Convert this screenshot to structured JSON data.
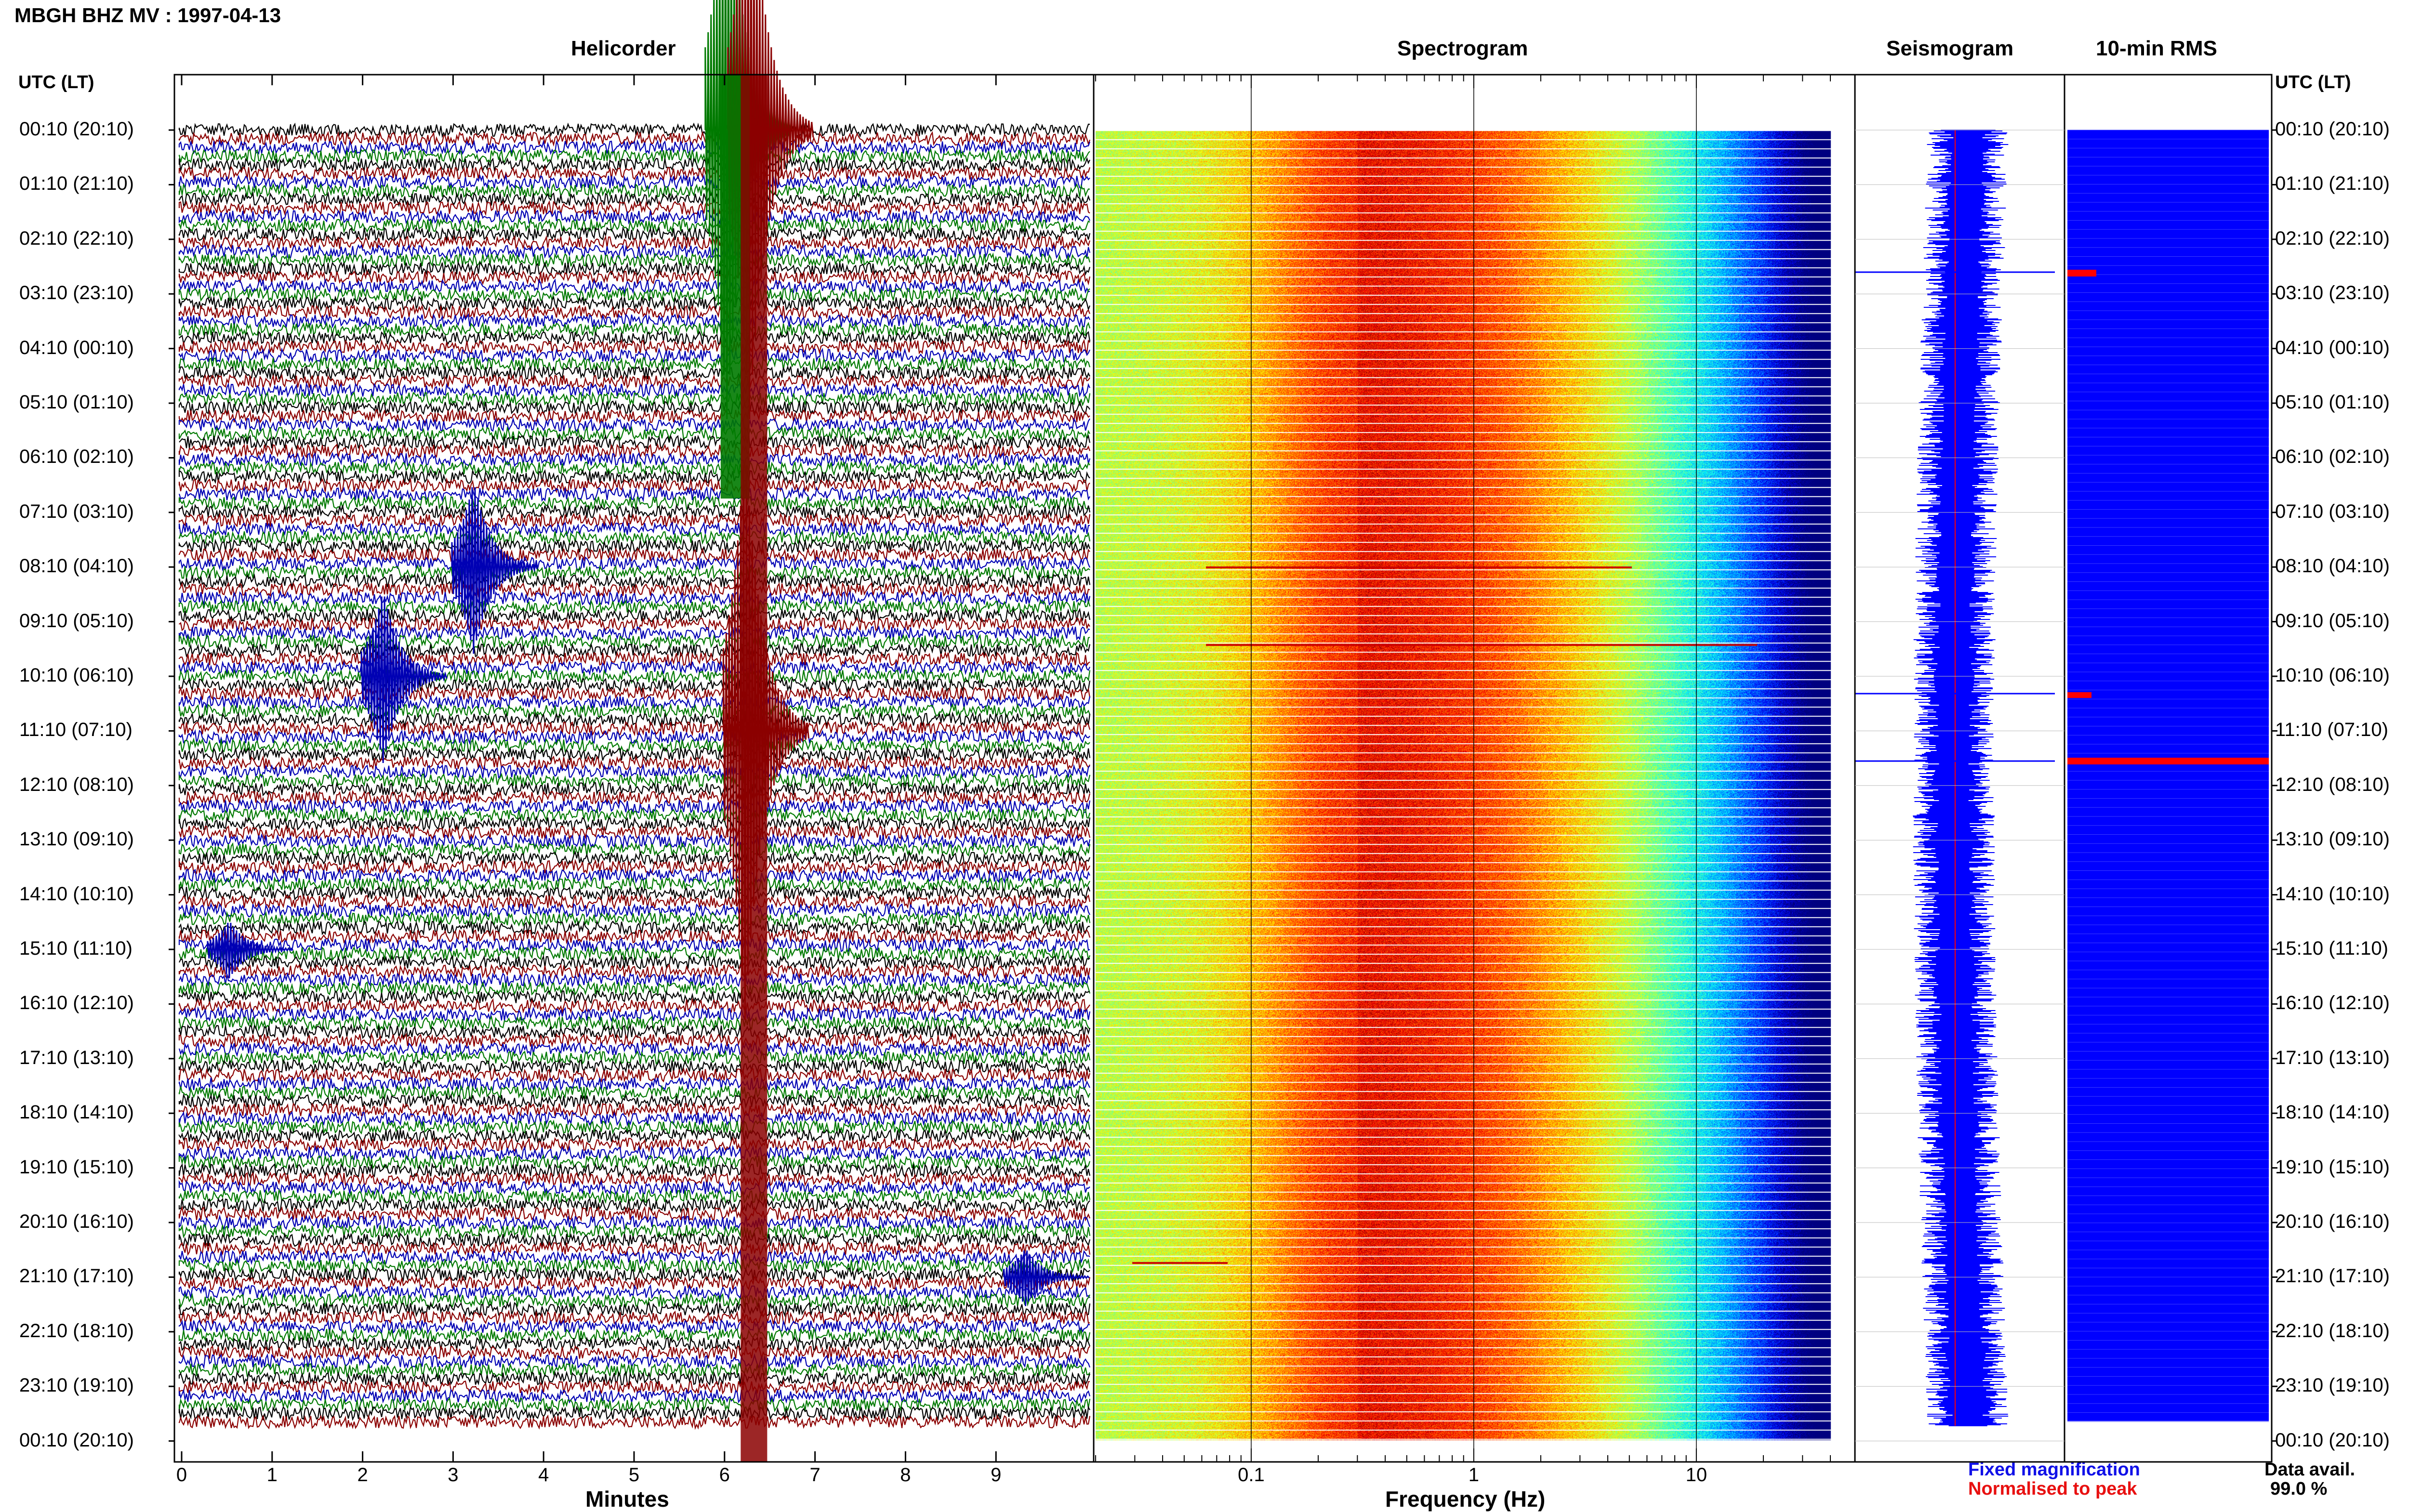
{
  "header": {
    "station_title": "MBGH BHZ MV : 1997-04-13",
    "utc_lt_label_left": "UTC (LT)",
    "utc_lt_label_right": "UTC (LT)"
  },
  "panels": {
    "helicorder_title": "Helicorder",
    "spectrogram_title": "Spectrogram",
    "seismogram_title": "Seismogram",
    "rms_title": "10-min RMS"
  },
  "axes": {
    "minutes_label": "Minutes",
    "frequency_label": "Frequency (Hz)",
    "minute_ticks": [
      "0",
      "1",
      "2",
      "3",
      "4",
      "5",
      "6",
      "7",
      "8",
      "9"
    ],
    "frequency_ticks": [
      "0.1",
      "1",
      "10"
    ]
  },
  "time_labels": [
    "00:10 (20:10)",
    "01:10 (21:10)",
    "02:10 (22:10)",
    "03:10 (23:10)",
    "04:10 (00:10)",
    "05:10 (01:10)",
    "06:10 (02:10)",
    "07:10 (03:10)",
    "08:10 (04:10)",
    "09:10 (05:10)",
    "10:10 (06:10)",
    "11:10 (07:10)",
    "12:10 (08:10)",
    "13:10 (09:10)",
    "14:10 (10:10)",
    "15:10 (11:10)",
    "16:10 (12:10)",
    "17:10 (13:10)",
    "18:10 (14:10)",
    "19:10 (15:10)",
    "20:10 (16:10)",
    "21:10 (17:10)",
    "22:10 (18:10)",
    "23:10 (19:10)",
    "00:10 (20:10)"
  ],
  "legend": {
    "fixed_magnification": "Fixed magnification",
    "normalised_to_peak": "Normalised to peak",
    "fixed_color": "#1010e8",
    "normalised_color": "#e81010"
  },
  "data_availability": {
    "label": "Data avail.",
    "value": "99.0 %"
  },
  "colors": {
    "trace_black": "#000000",
    "trace_red": "#8b0000",
    "trace_blue": "#0000b4",
    "trace_green": "#007a00",
    "seismogram_blue": "#0000ff",
    "rms_blue": "#0000ff",
    "rms_red": "#ff0000"
  },
  "chart_data": [
    {
      "type": "line",
      "title": "Helicorder",
      "xlabel": "Minutes",
      "ylabel": "UTC (LT)",
      "xlim": [
        0,
        10
      ],
      "rows_per_hour": 6,
      "trace_color_cycle": [
        "black",
        "red",
        "blue",
        "green"
      ],
      "events": [
        {
          "hour_row": 0,
          "minute": 6.0,
          "amplitude": "saturated",
          "color": "green"
        },
        {
          "hour_row": 0,
          "minute": 6.25,
          "amplitude": "saturated",
          "color": "red"
        },
        {
          "hour_row": 8,
          "minute": 3.2,
          "amplitude": "large",
          "color": "blue"
        },
        {
          "hour_row": 10,
          "minute": 2.2,
          "amplitude": "large",
          "color": "blue"
        },
        {
          "hour_row": 11,
          "minute": 6.2,
          "amplitude": "saturated",
          "color": "red"
        },
        {
          "hour_row": 15,
          "minute": 0.5,
          "amplitude": "medium",
          "color": "blue"
        },
        {
          "hour_row": 21,
          "minute": 9.3,
          "amplitude": "medium",
          "color": "blue"
        }
      ]
    },
    {
      "type": "heatmap",
      "title": "Spectrogram",
      "xlabel": "Frequency (Hz)",
      "x_scale": "log",
      "xlim": [
        0.02,
        40
      ],
      "peak_frequency_hz": 0.3
    },
    {
      "type": "line",
      "title": "Seismogram",
      "series": [
        {
          "name": "Fixed magnification",
          "color": "blue"
        },
        {
          "name": "Normalised to peak",
          "color": "red"
        }
      ]
    },
    {
      "type": "bar",
      "title": "10-min RMS",
      "notable_peaks_utc": [
        "03:00",
        "10:30",
        "11:50"
      ]
    }
  ]
}
